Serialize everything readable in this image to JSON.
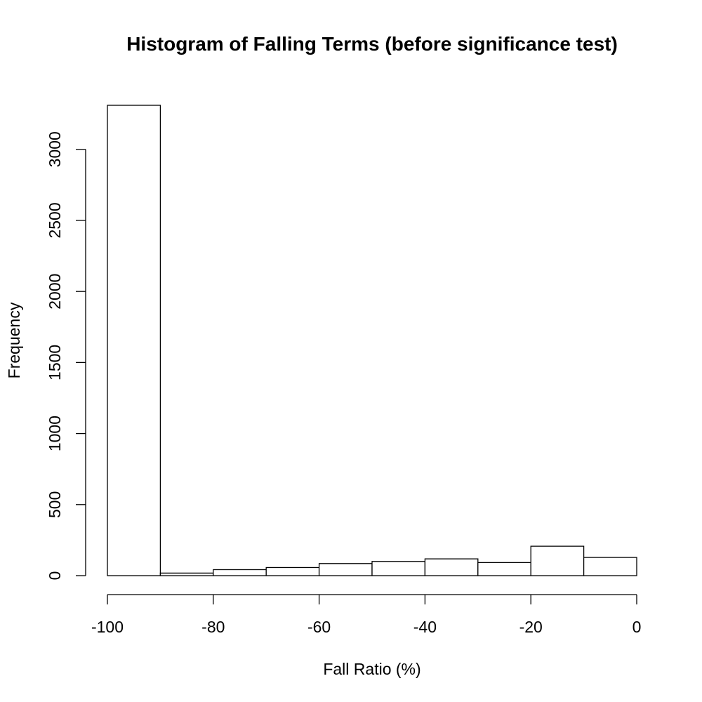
{
  "chart_data": {
    "type": "bar",
    "title": "Histogram of Falling Terms (before significance test)",
    "xlabel": "Fall Ratio (%)",
    "ylabel": "Frequency",
    "bin_edges": [
      -100,
      -90,
      -80,
      -70,
      -60,
      -50,
      -40,
      -30,
      -20,
      -10,
      0
    ],
    "values": [
      3310,
      18,
      42,
      57,
      85,
      100,
      118,
      92,
      207,
      128
    ],
    "xlim": [
      -100,
      0
    ],
    "ylim": [
      0,
      3310
    ],
    "x_ticks": [
      -100,
      -80,
      -60,
      -40,
      -20,
      0
    ],
    "x_tick_labels": [
      "-100",
      "-80",
      "-60",
      "-40",
      "-20",
      "0"
    ],
    "y_ticks": [
      0,
      500,
      1000,
      1500,
      2000,
      2500,
      3000
    ],
    "y_tick_labels": [
      "0",
      "500",
      "1000",
      "1500",
      "2000",
      "2500",
      "3000"
    ],
    "grid": false,
    "bar_fill": "#ffffff",
    "bar_stroke": "#000000"
  }
}
